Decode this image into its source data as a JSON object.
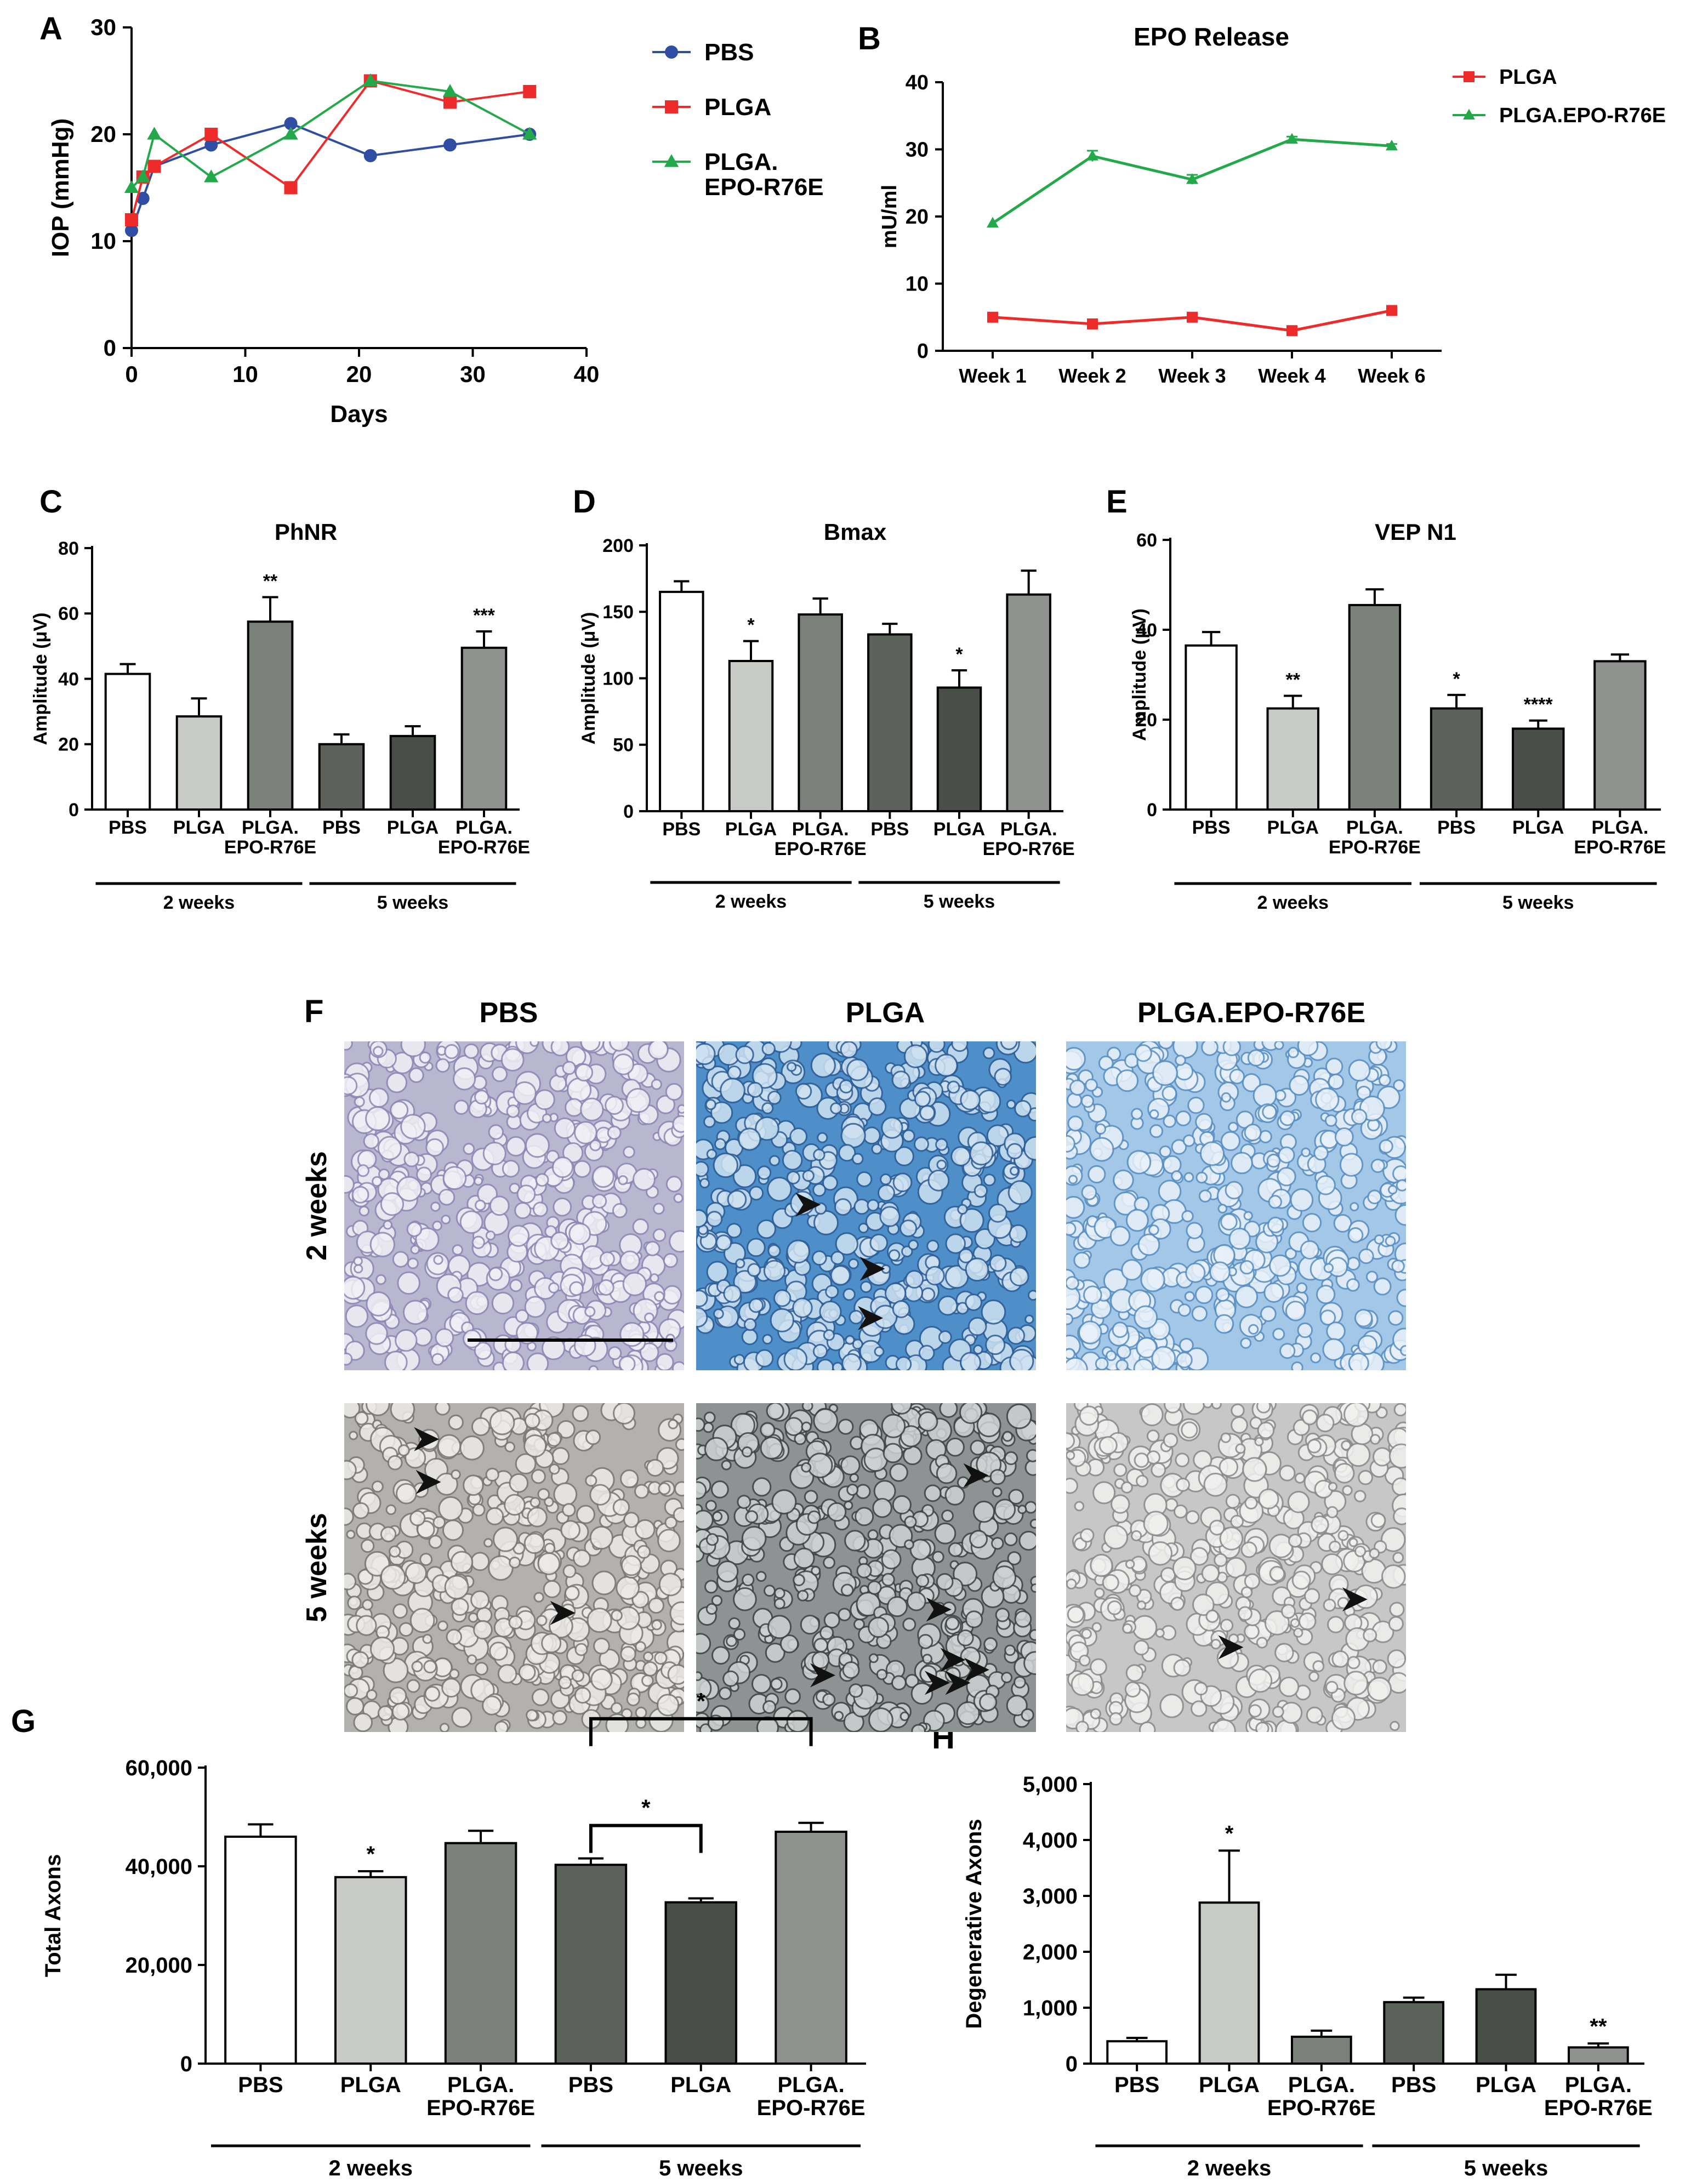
{
  "panel_labels": {
    "A": "A",
    "B": "B",
    "C": "C",
    "D": "D",
    "E": "E",
    "F": "F",
    "G": "G",
    "H": "H"
  },
  "group_labels": {
    "two_weeks": "2 weeks",
    "five_weeks": "5 weeks"
  },
  "colors": {
    "pbs_line": "#2e4da3",
    "plga_line": "#ee2b2b",
    "epo_line": "#23a84a",
    "bar_outline": "#000000"
  },
  "chart_data": [
    {
      "id": "A",
      "type": "line",
      "title": "",
      "xlabel": "Days",
      "ylabel": "IOP (mmHg)",
      "xlim": [
        0,
        40
      ],
      "ylim": [
        0,
        30
      ],
      "xticks": [
        0,
        10,
        20,
        30,
        40
      ],
      "yticks": [
        0,
        10,
        20,
        30
      ],
      "legend": "right",
      "series": [
        {
          "name": "PBS",
          "color": "#2e4da3",
          "marker": "circle",
          "x": [
            0,
            1,
            2,
            7,
            14,
            21,
            28,
            35
          ],
          "y": [
            11,
            14,
            17,
            19,
            21,
            18,
            19,
            20
          ]
        },
        {
          "name": "PLGA",
          "color": "#ee2b2b",
          "marker": "square",
          "x": [
            0,
            1,
            2,
            7,
            14,
            21,
            28,
            35
          ],
          "y": [
            12,
            16,
            17,
            20,
            15,
            25,
            23,
            24
          ]
        },
        {
          "name": "PLGA.\nEPO-R76E",
          "color": "#23a84a",
          "marker": "triangle",
          "x": [
            0,
            1,
            2,
            7,
            14,
            21,
            28,
            35
          ],
          "y": [
            15,
            16,
            20,
            16,
            20,
            25,
            24,
            20
          ]
        }
      ]
    },
    {
      "id": "B",
      "type": "line",
      "title": "EPO Release",
      "xlabel": "",
      "ylabel": "mU/ml",
      "categories": [
        "Week 1",
        "Week 2",
        "Week 3",
        "Week 4",
        "Week 6"
      ],
      "ylim": [
        0,
        40
      ],
      "yticks": [
        0,
        10,
        20,
        30,
        40
      ],
      "legend": "top-right",
      "series": [
        {
          "name": "PLGA",
          "color": "#ee2b2b",
          "marker": "square",
          "values": [
            5,
            4,
            5,
            3,
            6
          ],
          "errors": [
            0,
            0,
            0,
            0,
            0
          ]
        },
        {
          "name": "PLGA.EPO-R76E",
          "color": "#23a84a",
          "marker": "triangle",
          "values": [
            19,
            29,
            25.5,
            31.5,
            30.5
          ],
          "errors": [
            0,
            0.8,
            0.7,
            0.4,
            0.3
          ]
        }
      ]
    },
    {
      "id": "C",
      "type": "bar",
      "title": "PhNR",
      "ylabel": "Amplitude (μV)",
      "ylim": [
        0,
        80
      ],
      "yticks": [
        0,
        20,
        40,
        60,
        80
      ],
      "categories": [
        "PBS",
        "PLGA",
        "PLGA.\nEPO-R76E",
        "PBS",
        "PLGA",
        "PLGA.\nEPO-R76E"
      ],
      "values": [
        41.5,
        28.5,
        57.5,
        20,
        22.5,
        49.5
      ],
      "errors": [
        3,
        5.5,
        7.5,
        3,
        3,
        5
      ],
      "significance": [
        "",
        "",
        "**",
        "",
        "",
        "***"
      ],
      "fills": [
        "#ffffff",
        "#c8cac6",
        "#7c807b",
        "#5c615b",
        "#4a4e48",
        "#8f918e"
      ]
    },
    {
      "id": "D",
      "type": "bar",
      "title": "Bmax",
      "ylabel": "Amplitude (μV)",
      "ylim": [
        0,
        200
      ],
      "yticks": [
        0,
        50,
        100,
        150,
        200
      ],
      "categories": [
        "PBS",
        "PLGA",
        "PLGA.\nEPO-R76E",
        "PBS",
        "PLGA",
        "PLGA.\nEPO-R76E"
      ],
      "values": [
        165,
        113,
        148,
        133,
        93,
        163
      ],
      "errors": [
        8,
        15,
        12,
        8,
        13,
        18
      ],
      "significance": [
        "",
        "*",
        "",
        "",
        "*",
        ""
      ],
      "fills": [
        "#ffffff",
        "#c8cac6",
        "#7c807b",
        "#5c615b",
        "#4a4e48",
        "#8f918e"
      ]
    },
    {
      "id": "E",
      "type": "bar",
      "title": "VEP N1",
      "ylabel": "Amplitude (μV)",
      "ylim": [
        0,
        60
      ],
      "yticks": [
        0,
        20,
        40,
        60
      ],
      "categories": [
        "PBS",
        "PLGA",
        "PLGA.\nEPO-R76E",
        "PBS",
        "PLGA",
        "PLGA.\nEPO-R76E"
      ],
      "values": [
        36.5,
        22.5,
        45.5,
        22.5,
        18,
        33
      ],
      "errors": [
        3,
        2.8,
        3.5,
        3,
        1.8,
        1.5
      ],
      "significance": [
        "",
        "**",
        "",
        "*",
        "****",
        ""
      ],
      "fills": [
        "#ffffff",
        "#c8cac6",
        "#7c807b",
        "#5c615b",
        "#4a4e48",
        "#8f918e"
      ]
    },
    {
      "id": "G",
      "type": "bar",
      "title": "",
      "ylabel": "Total Axons",
      "ylim": [
        0,
        60000
      ],
      "yticks": [
        0,
        20000,
        40000,
        60000
      ],
      "ytick_labels": [
        "0",
        "20,000",
        "40,000",
        "60,000"
      ],
      "categories": [
        "PBS",
        "PLGA",
        "PLGA.\nEPO-R76E",
        "PBS",
        "PLGA",
        "PLGA.\nEPO-R76E"
      ],
      "values": [
        46000,
        37800,
        44700,
        40300,
        32700,
        47000
      ],
      "errors": [
        2500,
        1200,
        2500,
        1300,
        800,
        1800
      ],
      "significance": [
        "",
        "*",
        "",
        "",
        "",
        ""
      ],
      "brackets": [
        {
          "from": 3,
          "to": 4,
          "label": "*"
        },
        {
          "from": 3,
          "to": 5,
          "label": "*"
        }
      ],
      "fills": [
        "#ffffff",
        "#c8cac6",
        "#7c807b",
        "#5c615b",
        "#4a4e48",
        "#8f918e"
      ]
    },
    {
      "id": "H",
      "type": "bar",
      "title": "",
      "ylabel": "Degenerative Axons",
      "ylim": [
        0,
        5000
      ],
      "yticks": [
        0,
        1000,
        2000,
        3000,
        4000,
        5000
      ],
      "ytick_labels": [
        "0",
        "1,000",
        "2,000",
        "3,000",
        "4,000",
        "5,000"
      ],
      "categories": [
        "PBS",
        "PLGA",
        "PLGA.\nEPO-R76E",
        "PBS",
        "PLGA",
        "PLGA.\nEPO-R76E"
      ],
      "values": [
        400,
        2880,
        480,
        1100,
        1330,
        290
      ],
      "errors": [
        60,
        930,
        110,
        80,
        260,
        70
      ],
      "significance": [
        "",
        "*",
        "",
        "",
        "",
        "**"
      ],
      "fills": [
        "#ffffff",
        "#c8cac6",
        "#7c807b",
        "#5c615b",
        "#4a4e48",
        "#8f918e"
      ]
    }
  ],
  "micrographs": {
    "column_titles": [
      "PBS",
      "PLGA",
      "PLGA.EPO-R76E"
    ],
    "row_titles": [
      "2 weeks",
      "5 weeks"
    ],
    "tiles": [
      {
        "row": 0,
        "col": 0,
        "name": "PBS 2 weeks",
        "base": "#b9b6d0",
        "blob": "#f1f0f6",
        "ring": "#8d89b4",
        "arrowheads": 0,
        "scale_bar": true
      },
      {
        "row": 0,
        "col": 1,
        "name": "PLGA 2 weeks",
        "base": "#4e8ec9",
        "blob": "#cfe2f2",
        "ring": "#2f5e96",
        "arrowheads": 3,
        "scale_bar": false
      },
      {
        "row": 0,
        "col": 2,
        "name": "PLGA.EPO-R76E 2 weeks",
        "base": "#a3c7e6",
        "blob": "#e9f2fa",
        "ring": "#5a8fc2",
        "arrowheads": 0,
        "scale_bar": false
      },
      {
        "row": 1,
        "col": 0,
        "name": "PBS 5 weeks",
        "base": "#b3b1ad",
        "blob": "#ecebe7",
        "ring": "#7a7874",
        "arrowheads": 3,
        "scale_bar": false
      },
      {
        "row": 1,
        "col": 1,
        "name": "PLGA 5 weeks",
        "base": "#8e9292",
        "blob": "#cfd2d2",
        "ring": "#3f4444",
        "arrowheads": 7,
        "scale_bar": false
      },
      {
        "row": 1,
        "col": 2,
        "name": "PLGA.EPO-R76E 5 weeks",
        "base": "#c6c7c6",
        "blob": "#f1f1f0",
        "ring": "#8a8b8a",
        "arrowheads": 2,
        "scale_bar": false
      }
    ]
  }
}
